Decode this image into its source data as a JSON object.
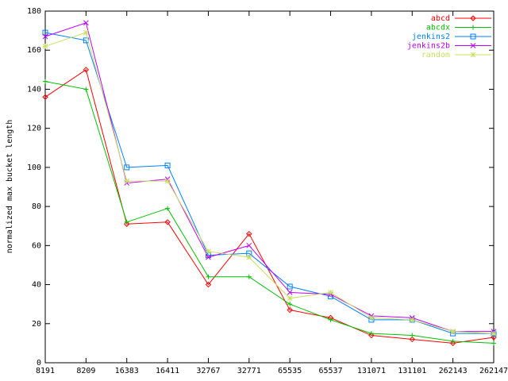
{
  "chart_data": {
    "type": "line",
    "y_label": "normalized max bucket length",
    "categories": [
      "8191",
      "8209",
      "16383",
      "16411",
      "32767",
      "32771",
      "65535",
      "65537",
      "131071",
      "131101",
      "262143",
      "262147"
    ],
    "ylim": [
      0,
      180
    ],
    "yticks": [
      0,
      20,
      40,
      60,
      80,
      100,
      120,
      140,
      160,
      180
    ],
    "legend": "top-right",
    "series": [
      {
        "name": "abcd",
        "color": "#ff0000",
        "marker": "diamond",
        "values": [
          136,
          150,
          71,
          72,
          40,
          66,
          27,
          23,
          14,
          12,
          10,
          13
        ]
      },
      {
        "name": "abcdx",
        "color": "#00c000",
        "marker": "plus",
        "values": [
          144,
          140,
          72,
          79,
          44,
          44,
          30,
          22,
          15,
          14,
          11,
          10
        ]
      },
      {
        "name": "jenkins2",
        "color": "#0080ff",
        "marker": "square",
        "values": [
          169,
          165,
          100,
          101,
          55,
          56,
          39,
          34,
          22,
          22,
          15,
          15
        ]
      },
      {
        "name": "jenkins2b",
        "color": "#c000ff",
        "marker": "cross",
        "values": [
          167,
          174,
          92,
          94,
          54,
          60,
          36,
          35,
          24,
          23,
          16,
          16
        ]
      },
      {
        "name": "random",
        "color": "#c8e060",
        "marker": "star",
        "values": [
          162,
          169,
          93,
          93,
          57,
          54,
          33,
          36,
          23,
          22,
          16,
          15
        ]
      }
    ]
  }
}
